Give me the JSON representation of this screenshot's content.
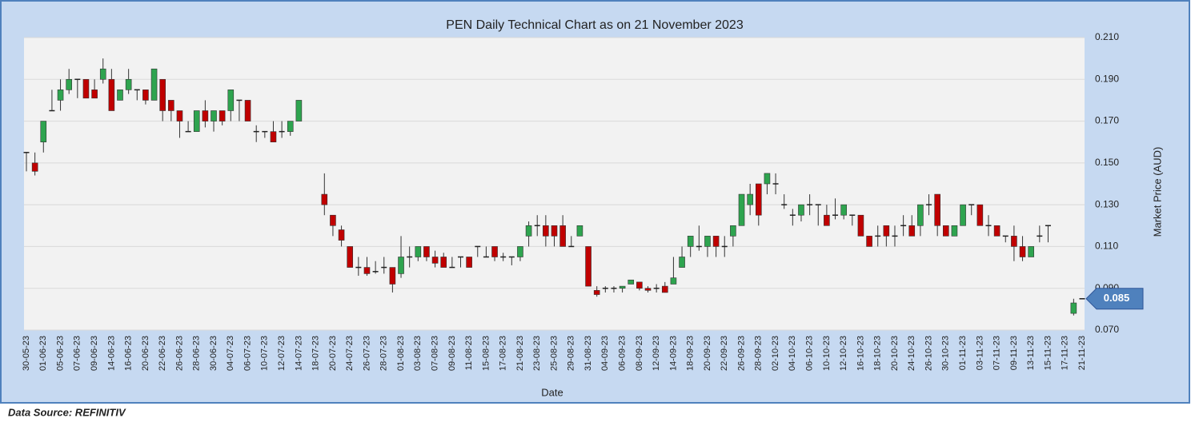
{
  "chart_data": {
    "type": "candlestick",
    "title": "PEN Daily Technical Chart as on 21 November 2023",
    "x_label": "Date",
    "y_label": "Market Price (AUD)",
    "categories": [
      "30-05-23",
      null,
      "01-06-23",
      null,
      "05-06-23",
      null,
      "07-06-23",
      null,
      "09-06-23",
      null,
      "14-06-23",
      null,
      "16-06-23",
      null,
      "20-06-23",
      null,
      "22-06-23",
      null,
      "26-06-23",
      null,
      "28-06-23",
      null,
      "30-06-23",
      null,
      "04-07-23",
      null,
      "06-07-23",
      null,
      "10-07-23",
      null,
      "12-07-23",
      null,
      "14-07-23",
      null,
      "18-07-23",
      null,
      "20-07-23",
      null,
      "24-07-23",
      null,
      "26-07-23",
      null,
      "28-07-23",
      null,
      "01-08-23",
      null,
      "03-08-23",
      null,
      "07-08-23",
      null,
      "09-08-23",
      null,
      "11-08-23",
      null,
      "15-08-23",
      null,
      "17-08-23",
      null,
      "21-08-23",
      null,
      "23-08-23",
      null,
      "25-08-23",
      null,
      "29-08-23",
      null,
      "31-08-23",
      null,
      "04-09-23",
      null,
      "06-09-23",
      null,
      "08-09-23",
      null,
      "12-09-23",
      null,
      "14-09-23",
      null,
      "18-09-23",
      null,
      "20-09-23",
      null,
      "22-09-23",
      null,
      "26-09-23",
      null,
      "28-09-23",
      null,
      "02-10-23",
      null,
      "04-10-23",
      null,
      "06-10-23",
      null,
      "10-10-23",
      null,
      "12-10-23",
      null,
      "16-10-23",
      null,
      "18-10-23",
      null,
      "20-10-23",
      null,
      "24-10-23",
      null,
      "26-10-23",
      null,
      "30-10-23",
      null,
      "01-11-23",
      null,
      "03-11-23",
      null,
      "07-11-23",
      null,
      "09-11-23",
      null,
      "13-11-23",
      null,
      "15-11-23",
      null,
      "17-11-23",
      null,
      "21-11-23"
    ],
    "open": [
      0.155,
      0.15,
      0.16,
      0.175,
      0.18,
      0.185,
      0.19,
      0.19,
      0.185,
      0.19,
      0.19,
      0.18,
      0.185,
      0.185,
      0.185,
      0.18,
      0.19,
      0.18,
      0.175,
      0.165,
      0.165,
      0.175,
      0.17,
      0.175,
      0.175,
      0.18,
      0.18,
      0.165,
      0.165,
      0.165,
      0.165,
      0.165,
      0.17,
      null,
      null,
      0.135,
      0.125,
      0.118,
      0.11,
      0.1,
      0.1,
      0.098,
      0.1,
      0.1,
      0.097,
      0.105,
      0.105,
      0.11,
      0.105,
      0.105,
      0.1,
      0.105,
      0.105,
      0.11,
      0.105,
      0.11,
      0.105,
      0.105,
      0.105,
      0.115,
      0.12,
      0.12,
      0.12,
      0.12,
      0.11,
      0.115,
      0.11,
      0.089,
      0.09,
      0.09,
      0.09,
      0.092,
      0.093,
      0.09,
      0.09,
      0.091,
      0.092,
      0.1,
      0.11,
      0.11,
      0.11,
      0.115,
      0.11,
      0.115,
      0.12,
      0.13,
      0.14,
      0.14,
      0.14,
      0.13,
      0.125,
      0.125,
      0.13,
      0.13,
      0.125,
      0.125,
      0.125,
      0.125,
      0.125,
      0.115,
      0.115,
      0.12,
      0.115,
      0.12,
      0.12,
      0.12,
      0.13,
      0.135,
      0.12,
      0.115,
      0.12,
      0.13,
      0.13,
      0.12,
      0.12,
      0.115,
      0.115,
      0.11,
      0.105,
      0.115,
      0.12,
      null,
      null,
      0.078,
      0.085
    ],
    "high": [
      0.155,
      0.155,
      0.17,
      0.185,
      0.19,
      0.195,
      0.19,
      0.19,
      0.19,
      0.2,
      0.195,
      0.185,
      0.195,
      0.185,
      0.185,
      0.195,
      0.19,
      0.18,
      0.175,
      0.17,
      0.175,
      0.18,
      0.175,
      0.175,
      0.185,
      0.18,
      0.18,
      0.168,
      0.165,
      0.17,
      0.17,
      0.17,
      0.18,
      null,
      null,
      0.145,
      0.125,
      0.12,
      0.11,
      0.105,
      0.105,
      0.103,
      0.105,
      0.1,
      0.115,
      0.11,
      0.11,
      0.11,
      0.108,
      0.107,
      0.105,
      0.105,
      0.105,
      0.11,
      0.11,
      0.11,
      0.107,
      0.105,
      0.11,
      0.122,
      0.125,
      0.125,
      0.12,
      0.125,
      0.115,
      0.12,
      0.11,
      0.091,
      0.091,
      0.091,
      0.091,
      0.094,
      0.093,
      0.091,
      0.092,
      0.093,
      0.105,
      0.11,
      0.115,
      0.12,
      0.115,
      0.115,
      0.115,
      0.12,
      0.135,
      0.14,
      0.14,
      0.145,
      0.145,
      0.135,
      0.128,
      0.13,
      0.135,
      0.13,
      0.13,
      0.133,
      0.13,
      0.125,
      0.125,
      0.115,
      0.12,
      0.12,
      0.12,
      0.125,
      0.125,
      0.13,
      0.135,
      0.135,
      0.12,
      0.12,
      0.13,
      0.13,
      0.13,
      0.125,
      0.12,
      0.115,
      0.12,
      0.115,
      0.11,
      0.12,
      0.12,
      null,
      null,
      0.085,
      0.085
    ],
    "low": [
      0.146,
      0.144,
      0.155,
      0.175,
      0.175,
      0.183,
      0.181,
      0.181,
      0.181,
      0.188,
      0.175,
      0.18,
      0.183,
      0.18,
      0.178,
      0.18,
      0.17,
      0.17,
      0.162,
      0.165,
      0.165,
      0.167,
      0.165,
      0.168,
      0.17,
      0.17,
      0.17,
      0.16,
      0.162,
      0.16,
      0.162,
      0.163,
      0.17,
      null,
      null,
      0.125,
      0.115,
      0.11,
      0.1,
      0.096,
      0.096,
      0.097,
      0.097,
      0.088,
      0.095,
      0.1,
      0.103,
      0.103,
      0.1,
      0.1,
      0.1,
      0.1,
      0.1,
      0.105,
      0.105,
      0.103,
      0.103,
      0.101,
      0.103,
      0.11,
      0.115,
      0.11,
      0.11,
      0.11,
      0.11,
      0.115,
      0.091,
      0.086,
      0.088,
      0.088,
      0.088,
      0.092,
      0.089,
      0.088,
      0.088,
      0.088,
      0.092,
      0.1,
      0.105,
      0.108,
      0.105,
      0.105,
      0.105,
      0.11,
      0.12,
      0.125,
      0.12,
      0.135,
      0.135,
      0.128,
      0.12,
      0.122,
      0.125,
      0.12,
      0.12,
      0.123,
      0.123,
      0.12,
      0.115,
      0.11,
      0.11,
      0.11,
      0.11,
      0.115,
      0.115,
      0.115,
      0.125,
      0.115,
      0.115,
      0.115,
      0.12,
      0.125,
      0.12,
      0.115,
      0.115,
      0.112,
      0.103,
      0.103,
      0.105,
      0.112,
      0.112,
      null,
      null,
      0.077,
      0.085
    ],
    "close": [
      0.155,
      0.146,
      0.17,
      0.175,
      0.185,
      0.19,
      0.19,
      0.181,
      0.181,
      0.195,
      0.175,
      0.185,
      0.19,
      0.185,
      0.18,
      0.195,
      0.175,
      0.175,
      0.17,
      0.165,
      0.175,
      0.17,
      0.175,
      0.17,
      0.185,
      0.18,
      0.17,
      0.165,
      0.165,
      0.16,
      0.165,
      0.17,
      0.18,
      null,
      null,
      0.13,
      0.12,
      0.113,
      0.1,
      0.1,
      0.097,
      0.098,
      0.1,
      0.092,
      0.105,
      0.105,
      0.11,
      0.105,
      0.102,
      0.1,
      0.1,
      0.105,
      0.1,
      0.11,
      0.105,
      0.105,
      0.105,
      0.105,
      0.11,
      0.12,
      0.12,
      0.115,
      0.115,
      0.11,
      0.11,
      0.12,
      0.091,
      0.087,
      0.09,
      0.09,
      0.091,
      0.094,
      0.09,
      0.089,
      0.09,
      0.088,
      0.095,
      0.105,
      0.115,
      0.11,
      0.115,
      0.11,
      0.11,
      0.12,
      0.135,
      0.135,
      0.125,
      0.145,
      0.14,
      0.13,
      0.125,
      0.13,
      0.13,
      0.13,
      0.12,
      0.125,
      0.13,
      0.125,
      0.115,
      0.11,
      0.115,
      0.115,
      0.115,
      0.12,
      0.115,
      0.13,
      0.13,
      0.12,
      0.115,
      0.12,
      0.13,
      0.13,
      0.12,
      0.12,
      0.115,
      0.115,
      0.11,
      0.105,
      0.11,
      0.115,
      0.12,
      null,
      null,
      0.083,
      0.085
    ],
    "up_color": "#2ea44f",
    "down_color": "#c00000",
    "ylim": [
      0.07,
      0.21
    ],
    "yticks": [
      {
        "value": 0.07,
        "label": "0.070"
      },
      {
        "value": 0.09,
        "label": "0.090"
      },
      {
        "value": 0.11,
        "label": "0.110"
      },
      {
        "value": 0.13,
        "label": "0.130"
      },
      {
        "value": 0.15,
        "label": "0.150"
      },
      {
        "value": 0.17,
        "label": "0.170"
      },
      {
        "value": 0.19,
        "label": "0.190"
      },
      {
        "value": 0.21,
        "label": "0.210"
      }
    ],
    "grid": true,
    "last_price": 0.085
  },
  "source": "Data Source: REFINITIV"
}
